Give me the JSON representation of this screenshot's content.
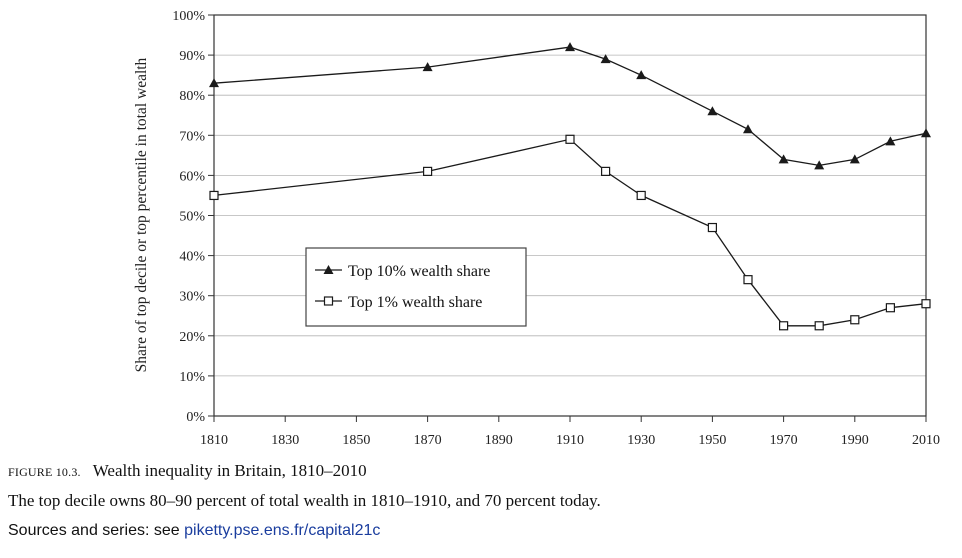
{
  "chart_data": {
    "type": "line",
    "title": "",
    "xlabel": "",
    "ylabel": "Share of top decile or top percentile in total wealth",
    "xlim": [
      1810,
      2010
    ],
    "ylim": [
      0,
      100
    ],
    "x_ticks": [
      "1810",
      "1830",
      "1850",
      "1870",
      "1890",
      "1910",
      "1930",
      "1950",
      "1970",
      "1990",
      "2010"
    ],
    "y_ticks": [
      "0%",
      "10%",
      "20%",
      "30%",
      "40%",
      "50%",
      "60%",
      "70%",
      "80%",
      "90%",
      "100%"
    ],
    "grid": "horizontal",
    "legend_position": "center-left",
    "series": [
      {
        "name": "Top 10% wealth share",
        "marker": "filled-triangle",
        "color": "#1a1a1a",
        "points": [
          {
            "x": 1810,
            "y": 83
          },
          {
            "x": 1870,
            "y": 87
          },
          {
            "x": 1910,
            "y": 92
          },
          {
            "x": 1920,
            "y": 89
          },
          {
            "x": 1930,
            "y": 85
          },
          {
            "x": 1950,
            "y": 76
          },
          {
            "x": 1960,
            "y": 71.5
          },
          {
            "x": 1970,
            "y": 64
          },
          {
            "x": 1980,
            "y": 62.5
          },
          {
            "x": 1990,
            "y": 64
          },
          {
            "x": 2000,
            "y": 68.5
          },
          {
            "x": 2010,
            "y": 70.5
          }
        ]
      },
      {
        "name": "Top 1% wealth share",
        "marker": "hollow-square",
        "color": "#1a1a1a",
        "points": [
          {
            "x": 1810,
            "y": 55
          },
          {
            "x": 1870,
            "y": 61
          },
          {
            "x": 1910,
            "y": 69
          },
          {
            "x": 1920,
            "y": 61
          },
          {
            "x": 1930,
            "y": 55
          },
          {
            "x": 1950,
            "y": 47
          },
          {
            "x": 1960,
            "y": 34
          },
          {
            "x": 1970,
            "y": 22.5
          },
          {
            "x": 1980,
            "y": 22.5
          },
          {
            "x": 1990,
            "y": 24
          },
          {
            "x": 2000,
            "y": 27
          },
          {
            "x": 2010,
            "y": 28
          }
        ]
      }
    ]
  },
  "caption": {
    "figure_label": "FIGURE 10.3.",
    "figure_title": "Wealth inequality in Britain, 1810–2010",
    "description": "The top decile owns 80–90 percent of total wealth in 1810–1910, and 70 percent today.",
    "sources_prefix": "Sources and series: see",
    "sources_link": "piketty.pse.ens.fr/capital21c"
  }
}
